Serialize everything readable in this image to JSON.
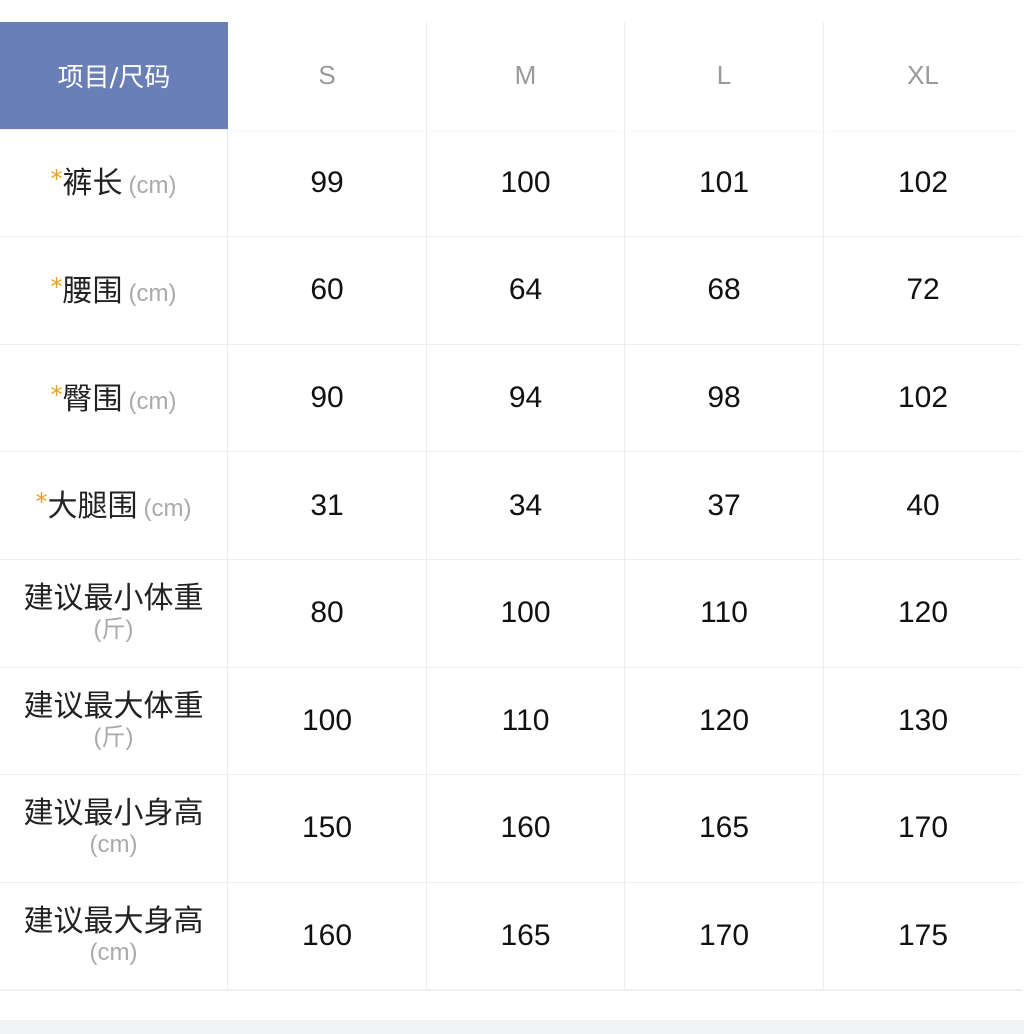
{
  "header": {
    "corner": "项目/尺码",
    "sizes": [
      "S",
      "M",
      "L",
      "XL"
    ]
  },
  "colors": {
    "header_bg": "#6a7fb6",
    "required_star": "#e5a020"
  },
  "rows": [
    {
      "required": true,
      "label": "裤长",
      "unit": "(cm)",
      "inline_unit": true,
      "values": [
        "99",
        "100",
        "101",
        "102"
      ]
    },
    {
      "required": true,
      "label": "腰围",
      "unit": "(cm)",
      "inline_unit": true,
      "values": [
        "60",
        "64",
        "68",
        "72"
      ]
    },
    {
      "required": true,
      "label": "臀围",
      "unit": "(cm)",
      "inline_unit": true,
      "values": [
        "90",
        "94",
        "98",
        "102"
      ]
    },
    {
      "required": true,
      "label": "大腿围",
      "unit": "(cm)",
      "inline_unit": true,
      "values": [
        "31",
        "34",
        "37",
        "40"
      ]
    },
    {
      "required": false,
      "label": "建议最小体重",
      "unit": "(斤)",
      "inline_unit": false,
      "values": [
        "80",
        "100",
        "110",
        "120"
      ]
    },
    {
      "required": false,
      "label": "建议最大体重",
      "unit": "(斤)",
      "inline_unit": false,
      "values": [
        "100",
        "110",
        "120",
        "130"
      ]
    },
    {
      "required": false,
      "label": "建议最小身高",
      "unit": "(cm)",
      "inline_unit": false,
      "values": [
        "150",
        "160",
        "165",
        "170"
      ]
    },
    {
      "required": false,
      "label": "建议最大身高",
      "unit": "(cm)",
      "inline_unit": false,
      "values": [
        "160",
        "165",
        "170",
        "175"
      ]
    }
  ]
}
